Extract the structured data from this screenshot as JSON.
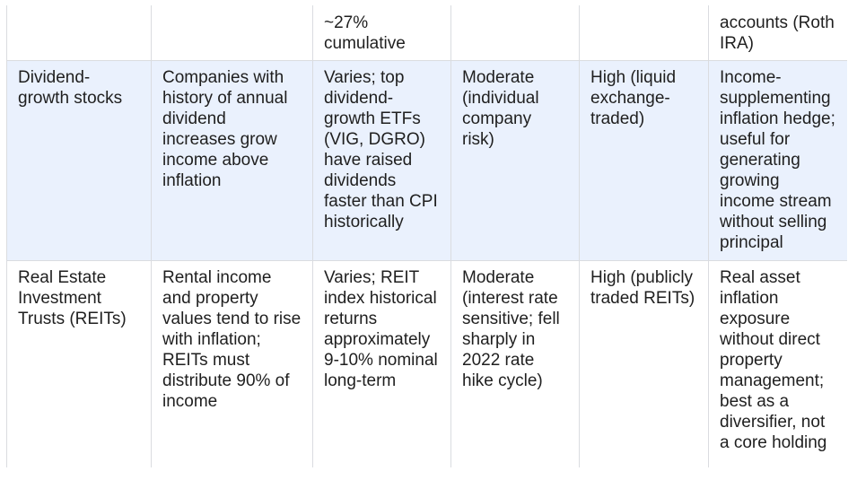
{
  "table": {
    "rows": [
      {
        "cells": [
          "",
          "",
          "~27% cumulative",
          "",
          "",
          "accounts (Roth IRA)"
        ]
      },
      {
        "cells": [
          "Dividend-growth stocks",
          "Companies with history of annual dividend increases grow income above inflation",
          "Varies; top dividend-growth ETFs (VIG, DGRO) have raised dividends faster than CPI historically",
          "Moderate (individual company risk)",
          "High (liquid exchange-traded)",
          "Income-supplementing inflation hedge; useful for generating growing income stream without selling principal"
        ]
      },
      {
        "cells": [
          "Real Estate Investment Trusts (REITs)",
          "Rental income and property values tend to rise with inflation; REITs must distribute 90% of income",
          "Varies; REIT index historical returns approximately 9-10% nominal long-term",
          "Moderate (interest rate sensitive; fell sharply in 2022 rate hike cycle)",
          "High (publicly traded REITs)",
          "Real asset inflation exposure without direct property management; best as a diversifier, not a core holding"
        ]
      }
    ]
  }
}
